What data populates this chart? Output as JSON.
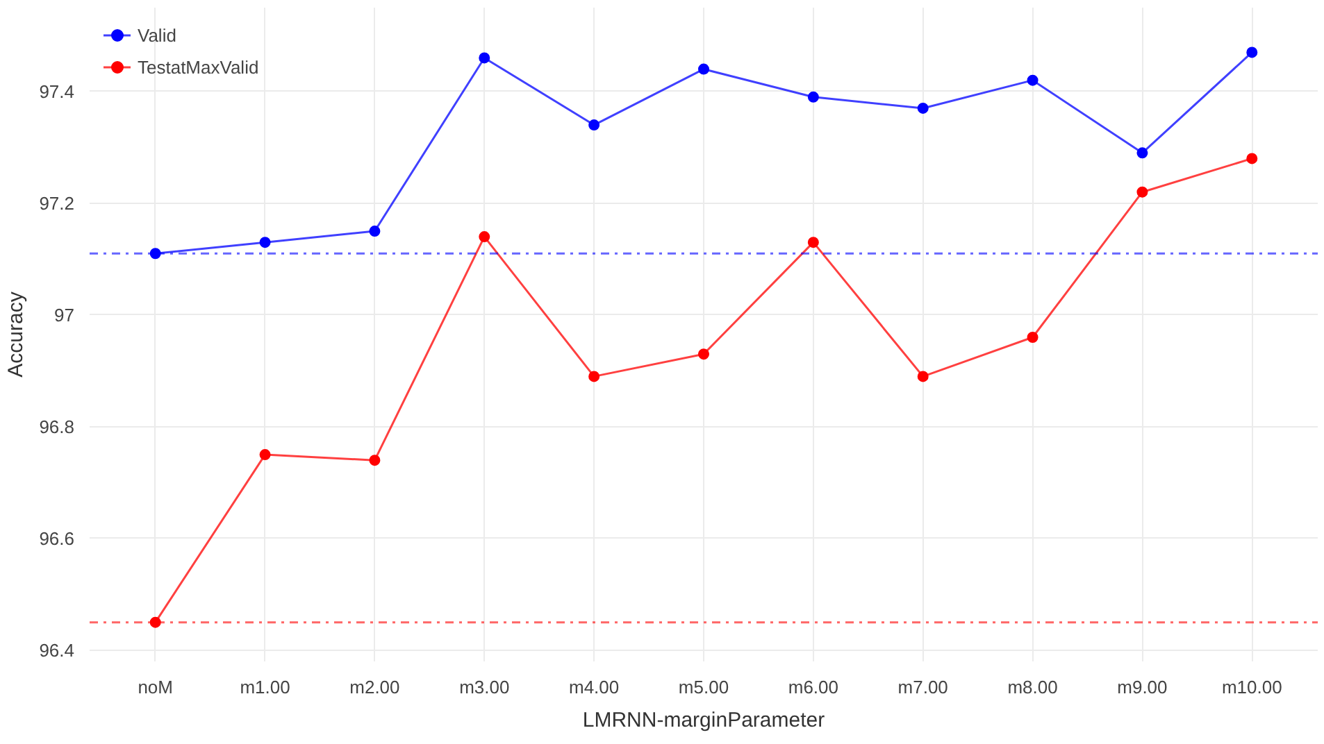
{
  "chart_data": {
    "type": "line",
    "xlabel": "LMRNN-marginParameter",
    "ylabel": "Accuracy",
    "categories": [
      "noM",
      "m1.00",
      "m2.00",
      "m3.00",
      "m4.00",
      "m5.00",
      "m6.00",
      "m7.00",
      "m8.00",
      "m9.00",
      "m10.00"
    ],
    "series": [
      {
        "name": "Valid",
        "color": "#0000ff",
        "values": [
          97.11,
          97.13,
          97.15,
          97.46,
          97.34,
          97.44,
          97.39,
          97.37,
          97.42,
          97.29,
          97.47
        ]
      },
      {
        "name": "TestatMaxValid",
        "color": "#ff0000",
        "values": [
          96.45,
          96.75,
          96.74,
          97.14,
          96.89,
          96.93,
          97.13,
          96.89,
          96.96,
          97.22,
          97.28
        ]
      }
    ],
    "ref_lines": [
      {
        "axis": "y",
        "value": 97.11,
        "color": "#0000ff",
        "line_style": "dashdot"
      },
      {
        "axis": "y",
        "value": 96.45,
        "color": "#ff0000",
        "line_style": "dashdot"
      }
    ],
    "ylim": [
      96.38,
      97.55
    ],
    "yticks": [
      {
        "value": 96.4,
        "label": "96.4"
      },
      {
        "value": 96.6,
        "label": "96.6"
      },
      {
        "value": 96.8,
        "label": "96.8"
      },
      {
        "value": 97,
        "label": "97"
      },
      {
        "value": 97.2,
        "label": "97.2"
      },
      {
        "value": 97.4,
        "label": "97.4"
      }
    ],
    "grid": true,
    "legend": "top left",
    "marker": "circle",
    "line_style": "solid"
  }
}
